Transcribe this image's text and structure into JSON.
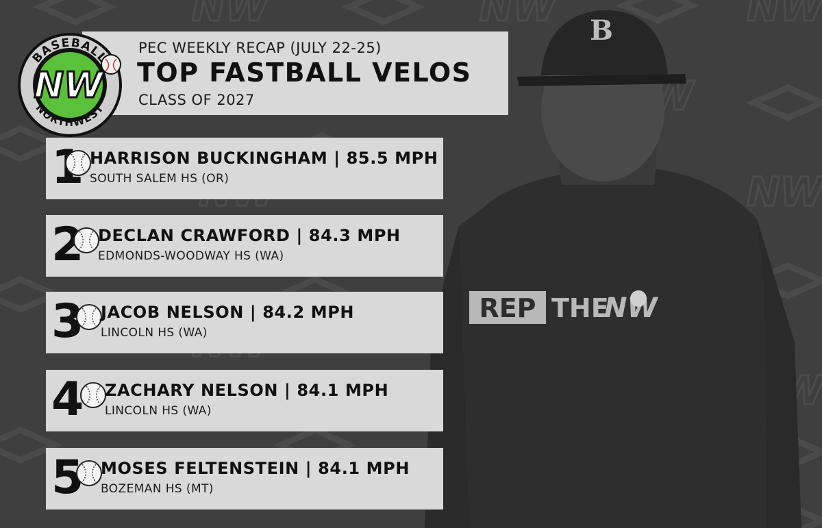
{
  "brand": {
    "logo_top": "BASEBALL",
    "logo_bottom": "NORTHWEST",
    "logo_mark": "NW",
    "logo_green": "#5cc13a"
  },
  "header": {
    "line1": "PEC WEEKLY RECAP (JULY 22-25)",
    "line2": "TOP FASTBALL VELOS",
    "line3": "CLASS OF 2027"
  },
  "shirt_text": {
    "rep": "REP",
    "the": "THE",
    "mark": "NW"
  },
  "cap_letter": "B",
  "rankings": [
    {
      "rank": "1",
      "name": "HARRISON BUCKINGHAM | 85.5 MPH",
      "school": "SOUTH SALEM HS (OR)"
    },
    {
      "rank": "2",
      "name": "DECLAN CRAWFORD | 84.3 MPH",
      "school": "EDMONDS-WOODWAY HS (WA)"
    },
    {
      "rank": "3",
      "name": "JACOB NELSON | 84.2 MPH",
      "school": "LINCOLN HS (WA)"
    },
    {
      "rank": "4",
      "name": "ZACHARY NELSON | 84.1 MPH",
      "school": "LINCOLN HS (WA)"
    },
    {
      "rank": "5",
      "name": "MOSES FELTENSTEIN | 84.1 MPH",
      "school": "BOZEMAN HS (MT)"
    }
  ]
}
